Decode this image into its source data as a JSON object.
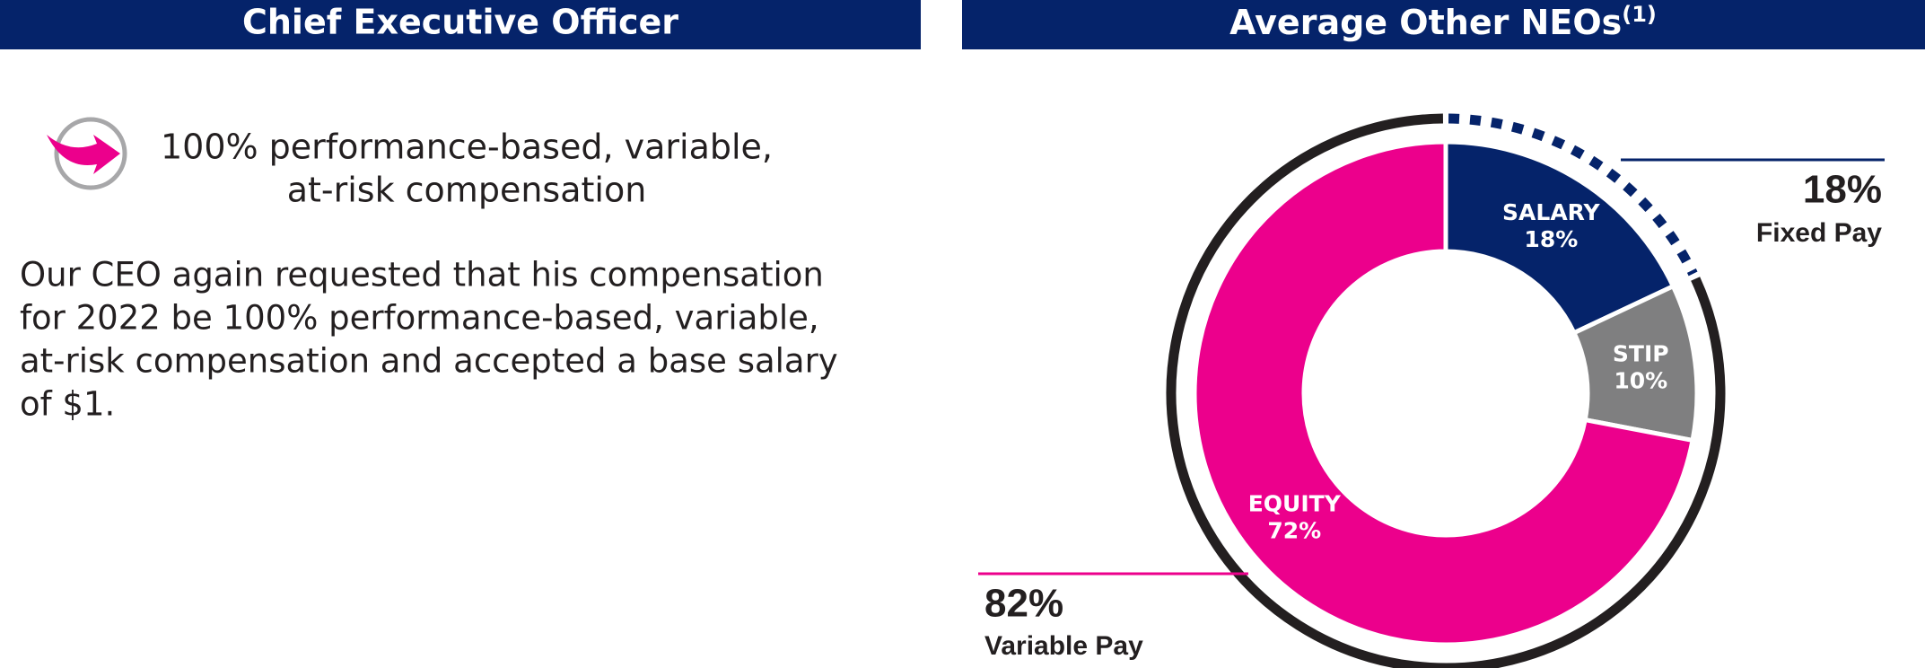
{
  "ceo_panel": {
    "title": "Chief Executive Officer",
    "callout_lines": [
      "100% performance-based, variable,",
      "at-risk compensation"
    ],
    "body_lines": [
      "Our CEO again requested that his compensation",
      "for 2022 be 100% performance-based, variable,",
      "at-risk compensation and accepted a base salary",
      "of $1."
    ]
  },
  "chart_data": {
    "type": "donut",
    "title": "Average Other NEOs",
    "title_note": "(1)",
    "categories": [
      "SALARY",
      "STIP",
      "EQUITY"
    ],
    "values": [
      18,
      10,
      72
    ],
    "value_labels": [
      "18%",
      "10%",
      "72%"
    ],
    "colors": [
      "#05236a",
      "#7f7f80",
      "#ec008c"
    ],
    "groups": [
      {
        "name": "Fixed Pay",
        "value": 18,
        "value_label": "18%",
        "color": "#05236a",
        "line_color": "#05236a"
      },
      {
        "name": "Variable Pay",
        "value": 82,
        "value_label": "82%",
        "color": "#231f20",
        "line_color": "#ec008c"
      }
    ]
  }
}
